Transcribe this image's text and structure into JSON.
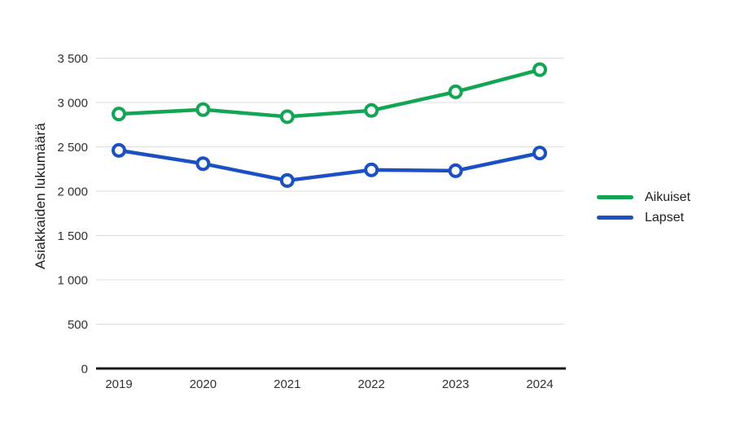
{
  "chart_data": {
    "type": "line",
    "x": [
      "2019",
      "2020",
      "2021",
      "2022",
      "2023",
      "2024"
    ],
    "series": [
      {
        "name": "Aikuiset",
        "color": "#12a553",
        "values": [
          2870,
          2920,
          2840,
          2910,
          3120,
          3370
        ]
      },
      {
        "name": "Lapset",
        "color": "#1a50c2",
        "values": [
          2460,
          2310,
          2120,
          2240,
          2230,
          2430
        ]
      }
    ],
    "title": "",
    "xlabel": "",
    "ylabel": "Asiakkaiden lukumäärä",
    "ylim": [
      0,
      3500
    ],
    "ytick_step": 500,
    "ytick_labels": [
      "0",
      "500",
      "1 000",
      "1 500",
      "2 000",
      "2 500",
      "3 000",
      "3 500"
    ],
    "grid": "horizontal-only",
    "legend_position": "right",
    "marker": "open-circle"
  },
  "colors": {
    "gridline": "#dcdcdc",
    "axis_line": "#1a1a1a",
    "tick_text": "#303030",
    "background": "#ffffff"
  }
}
